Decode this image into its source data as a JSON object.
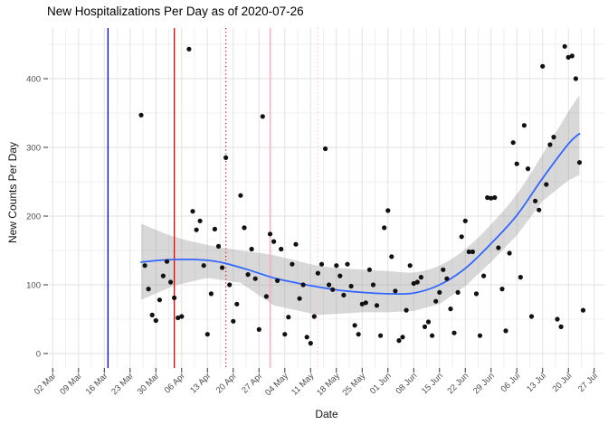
{
  "chart_data": {
    "type": "scatter",
    "title": "New Hospitalizations Per Day as of 2020-07-26",
    "xlabel": "Date",
    "ylabel": "New Counts Per Day",
    "grid": "on",
    "legend": "none",
    "y_ticks": [
      0,
      100,
      200,
      300,
      400
    ],
    "y_minor_ticks": [
      50,
      150,
      250,
      350,
      450
    ],
    "ylim": [
      -21,
      468
    ],
    "x_start_date": "2020-03-02",
    "x_end_date": "2020-07-27",
    "x_tick_labels": [
      "02 Mar",
      "09 Mar",
      "16 Mar",
      "23 Mar",
      "30 Mar",
      "06 Apr",
      "13 Apr",
      "20 Apr",
      "27 Apr",
      "04 May",
      "11 May",
      "18 May",
      "25 May",
      "01 Jun",
      "08 Jun",
      "15 Jun",
      "22 Jun",
      "29 Jun",
      "06 Jul",
      "13 Jul",
      "20 Jul",
      "27 Jul"
    ],
    "points": [
      [
        "2020-03-26",
        347
      ],
      [
        "2020-03-27",
        128
      ],
      [
        "2020-03-28",
        94
      ],
      [
        "2020-03-29",
        56
      ],
      [
        "2020-03-30",
        48
      ],
      [
        "2020-03-31",
        78
      ],
      [
        "2020-04-01",
        113
      ],
      [
        "2020-04-02",
        134
      ],
      [
        "2020-04-03",
        104
      ],
      [
        "2020-04-04",
        81
      ],
      [
        "2020-04-05",
        52
      ],
      [
        "2020-04-06",
        54
      ],
      [
        "2020-04-08",
        443
      ],
      [
        "2020-04-09",
        207
      ],
      [
        "2020-04-10",
        180
      ],
      [
        "2020-04-11",
        193
      ],
      [
        "2020-04-12",
        128
      ],
      [
        "2020-04-13",
        28
      ],
      [
        "2020-04-14",
        87
      ],
      [
        "2020-04-15",
        181
      ],
      [
        "2020-04-16",
        156
      ],
      [
        "2020-04-17",
        125
      ],
      [
        "2020-04-18",
        285
      ],
      [
        "2020-04-19",
        100
      ],
      [
        "2020-04-20",
        47
      ],
      [
        "2020-04-21",
        72
      ],
      [
        "2020-04-22",
        230
      ],
      [
        "2020-04-23",
        183
      ],
      [
        "2020-04-24",
        115
      ],
      [
        "2020-04-25",
        152
      ],
      [
        "2020-04-26",
        109
      ],
      [
        "2020-04-27",
        35
      ],
      [
        "2020-04-28",
        345
      ],
      [
        "2020-04-29",
        83
      ],
      [
        "2020-04-30",
        174
      ],
      [
        "2020-05-01",
        163
      ],
      [
        "2020-05-02",
        106
      ],
      [
        "2020-05-03",
        152
      ],
      [
        "2020-05-04",
        28
      ],
      [
        "2020-05-05",
        53
      ],
      [
        "2020-05-06",
        130
      ],
      [
        "2020-05-07",
        159
      ],
      [
        "2020-05-08",
        80
      ],
      [
        "2020-05-09",
        100
      ],
      [
        "2020-05-10",
        24
      ],
      [
        "2020-05-11",
        15
      ],
      [
        "2020-05-12",
        54
      ],
      [
        "2020-05-13",
        117
      ],
      [
        "2020-05-14",
        130
      ],
      [
        "2020-05-15",
        298
      ],
      [
        "2020-05-16",
        100
      ],
      [
        "2020-05-17",
        93
      ],
      [
        "2020-05-18",
        128
      ],
      [
        "2020-05-19",
        113
      ],
      [
        "2020-05-20",
        85
      ],
      [
        "2020-05-21",
        130
      ],
      [
        "2020-05-22",
        98
      ],
      [
        "2020-05-23",
        41
      ],
      [
        "2020-05-24",
        28
      ],
      [
        "2020-05-25",
        72
      ],
      [
        "2020-05-26",
        74
      ],
      [
        "2020-05-27",
        122
      ],
      [
        "2020-05-28",
        100
      ],
      [
        "2020-05-29",
        70
      ],
      [
        "2020-05-30",
        26
      ],
      [
        "2020-05-31",
        183
      ],
      [
        "2020-06-01",
        208
      ],
      [
        "2020-06-02",
        141
      ],
      [
        "2020-06-03",
        91
      ],
      [
        "2020-06-04",
        19
      ],
      [
        "2020-06-05",
        24
      ],
      [
        "2020-06-06",
        63
      ],
      [
        "2020-06-07",
        128
      ],
      [
        "2020-06-08",
        102
      ],
      [
        "2020-06-09",
        104
      ],
      [
        "2020-06-10",
        111
      ],
      [
        "2020-06-11",
        39
      ],
      [
        "2020-06-12",
        46
      ],
      [
        "2020-06-13",
        26
      ],
      [
        "2020-06-14",
        76
      ],
      [
        "2020-06-15",
        89
      ],
      [
        "2020-06-16",
        122
      ],
      [
        "2020-06-17",
        109
      ],
      [
        "2020-06-18",
        65
      ],
      [
        "2020-06-19",
        30
      ],
      [
        "2020-06-20",
        89
      ],
      [
        "2020-06-21",
        170
      ],
      [
        "2020-06-22",
        193
      ],
      [
        "2020-06-23",
        148
      ],
      [
        "2020-06-24",
        148
      ],
      [
        "2020-06-25",
        87
      ],
      [
        "2020-06-26",
        26
      ],
      [
        "2020-06-27",
        113
      ],
      [
        "2020-06-28",
        227
      ],
      [
        "2020-06-29",
        226
      ],
      [
        "2020-06-30",
        227
      ],
      [
        "2020-07-01",
        154
      ],
      [
        "2020-07-02",
        94
      ],
      [
        "2020-07-03",
        33
      ],
      [
        "2020-07-04",
        146
      ],
      [
        "2020-07-05",
        307
      ],
      [
        "2020-07-06",
        276
      ],
      [
        "2020-07-07",
        111
      ],
      [
        "2020-07-08",
        332
      ],
      [
        "2020-07-09",
        269
      ],
      [
        "2020-07-10",
        54
      ],
      [
        "2020-07-11",
        222
      ],
      [
        "2020-07-12",
        209
      ],
      [
        "2020-07-13",
        418
      ],
      [
        "2020-07-14",
        246
      ],
      [
        "2020-07-15",
        304
      ],
      [
        "2020-07-16",
        315
      ],
      [
        "2020-07-17",
        50
      ],
      [
        "2020-07-18",
        39
      ],
      [
        "2020-07-19",
        447
      ],
      [
        "2020-07-20",
        431
      ],
      [
        "2020-07-21",
        433
      ],
      [
        "2020-07-22",
        400
      ],
      [
        "2020-07-23",
        278
      ],
      [
        "2020-07-24",
        63
      ]
    ],
    "smooth_line": [
      [
        "2020-03-26",
        133
      ],
      [
        "2020-04-01",
        136
      ],
      [
        "2020-04-08",
        137
      ],
      [
        "2020-04-14",
        135
      ],
      [
        "2020-04-18",
        131
      ],
      [
        "2020-04-24",
        122
      ],
      [
        "2020-05-01",
        110
      ],
      [
        "2020-05-07",
        103
      ],
      [
        "2020-05-13",
        97
      ],
      [
        "2020-05-19",
        92
      ],
      [
        "2020-05-25",
        89
      ],
      [
        "2020-06-01",
        87
      ],
      [
        "2020-06-08",
        88
      ],
      [
        "2020-06-15",
        100
      ],
      [
        "2020-06-22",
        124
      ],
      [
        "2020-06-29",
        160
      ],
      [
        "2020-07-06",
        201
      ],
      [
        "2020-07-13",
        255
      ],
      [
        "2020-07-20",
        305
      ],
      [
        "2020-07-23",
        320
      ]
    ],
    "ribbon": [
      [
        "2020-03-26",
        78,
        189
      ],
      [
        "2020-04-04",
        99,
        170
      ],
      [
        "2020-04-13",
        110,
        158
      ],
      [
        "2020-04-22",
        103,
        150
      ],
      [
        "2020-05-01",
        70,
        143
      ],
      [
        "2020-05-13",
        56,
        128
      ],
      [
        "2020-05-25",
        60,
        122
      ],
      [
        "2020-06-01",
        60,
        120
      ],
      [
        "2020-06-08",
        62,
        118
      ],
      [
        "2020-06-15",
        72,
        128
      ],
      [
        "2020-06-22",
        98,
        152
      ],
      [
        "2020-06-29",
        133,
        188
      ],
      [
        "2020-07-06",
        172,
        232
      ],
      [
        "2020-07-13",
        222,
        290
      ],
      [
        "2020-07-20",
        252,
        352
      ],
      [
        "2020-07-23",
        260,
        376
      ]
    ],
    "vlines": [
      {
        "name": "vline-blue-solid",
        "date": "2020-03-17",
        "color": "#0000EE",
        "style": "solid"
      },
      {
        "name": "vline-red-solid",
        "date": "2020-04-04",
        "color": "#EE0000",
        "style": "solid"
      },
      {
        "name": "vline-red-dotted",
        "date": "2020-04-18",
        "color": "#EE0000",
        "style": "dotted"
      },
      {
        "name": "vline-pink-solid",
        "date": "2020-04-30",
        "color": "#F7A8BC",
        "style": "solid"
      },
      {
        "name": "vline-pink-dotted",
        "date": "2020-05-13",
        "color": "#F9C6D0",
        "style": "dotted"
      }
    ],
    "colors": {
      "point": "#111111",
      "trend_line": "#3366FF",
      "ribbon": "rgba(153,153,153,0.38)",
      "grid_major": "#E2E2E2",
      "grid_minor": "#EFEFEF",
      "tick": "#333333",
      "tick_label": "#4D4D4D",
      "title": "#000000"
    }
  }
}
